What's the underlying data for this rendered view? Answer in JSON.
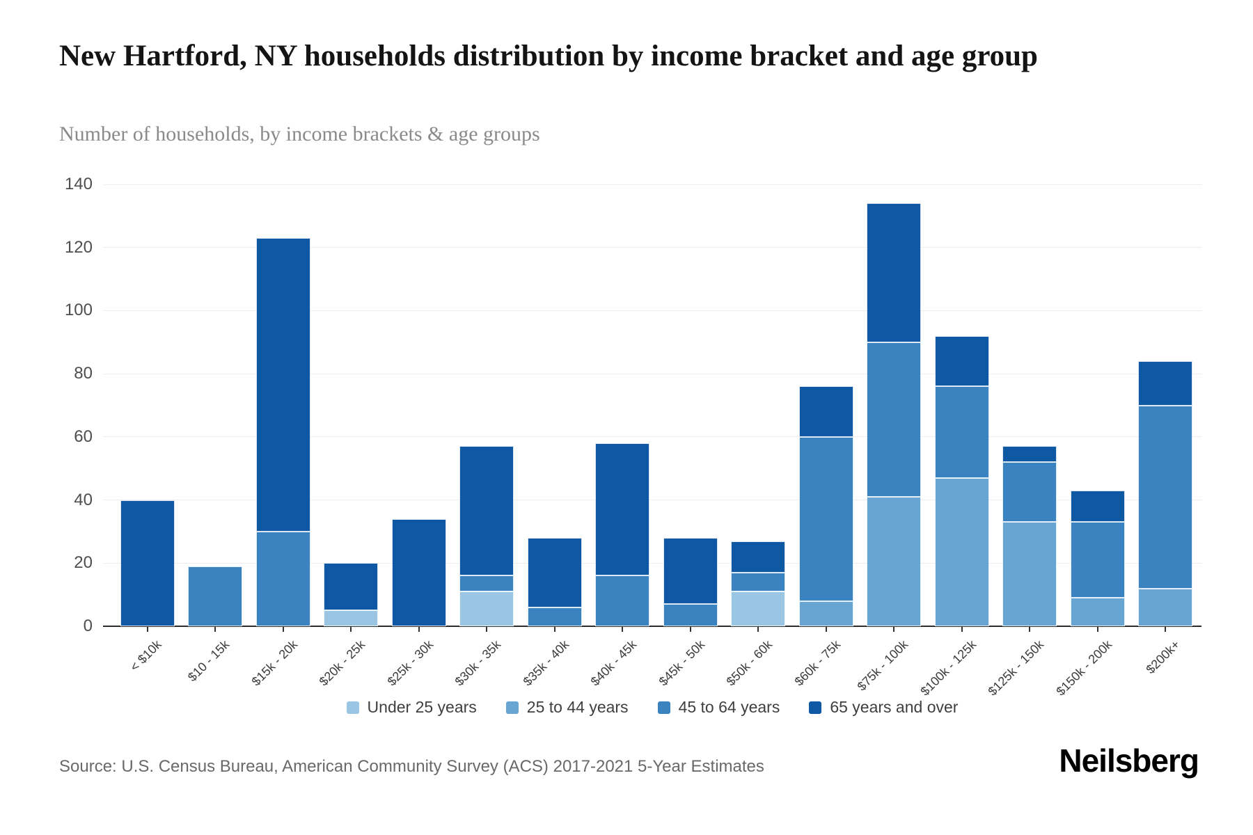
{
  "header": {
    "title": "New Hartford, NY households distribution by income bracket and age group",
    "subtitle": "Number of households, by income brackets & age groups"
  },
  "footer": {
    "source": "Source: U.S. Census Bureau, American Community Survey (ACS) 2017-2021 5-Year Estimates",
    "brand": "Neilsberg"
  },
  "chart_data": {
    "type": "bar",
    "stacked": true,
    "title": "New Hartford, NY households distribution by income bracket and age group",
    "subtitle": "Number of households, by income brackets & age groups",
    "xlabel": "",
    "ylabel": "Number of households",
    "ylim": [
      0,
      140
    ],
    "ytick_step": 20,
    "grid": true,
    "legend_position": "bottom",
    "categories": [
      "< $10k",
      "$10 - 15k",
      "$15k - 20k",
      "$20k - 25k",
      "$25k - 30k",
      "$30k - 35k",
      "$35k - 40k",
      "$40k - 45k",
      "$45k - 50k",
      "$50k - 60k",
      "$60k - 75k",
      "$75k - 100k",
      "$100k - 125k",
      "$125k - 150k",
      "$150k - 200k",
      "$200k+"
    ],
    "series": [
      {
        "name": "Under 25 years",
        "color": "#9ac5e3",
        "values": [
          0,
          0,
          0,
          5,
          0,
          11,
          0,
          0,
          0,
          11,
          0,
          0,
          0,
          0,
          0,
          0
        ]
      },
      {
        "name": "25 to 44 years",
        "color": "#68a5d3",
        "values": [
          0,
          0,
          0,
          0,
          0,
          0,
          0,
          0,
          0,
          0,
          8,
          41,
          47,
          33,
          9,
          12
        ]
      },
      {
        "name": "45 to 64 years",
        "color": "#3a82c0",
        "values": [
          0,
          19,
          30,
          0,
          0,
          5,
          6,
          16,
          7,
          6,
          52,
          49,
          29,
          19,
          24,
          58
        ]
      },
      {
        "name": "65 years and over",
        "color": "#0f58a4",
        "values": [
          40,
          0,
          93,
          15,
          34,
          41,
          22,
          42,
          21,
          10,
          16,
          44,
          16,
          5,
          10,
          14
        ]
      }
    ],
    "totals": [
      40,
      19,
      123,
      20,
      34,
      57,
      28,
      58,
      28,
      27,
      76,
      134,
      92,
      57,
      43,
      84
    ]
  }
}
